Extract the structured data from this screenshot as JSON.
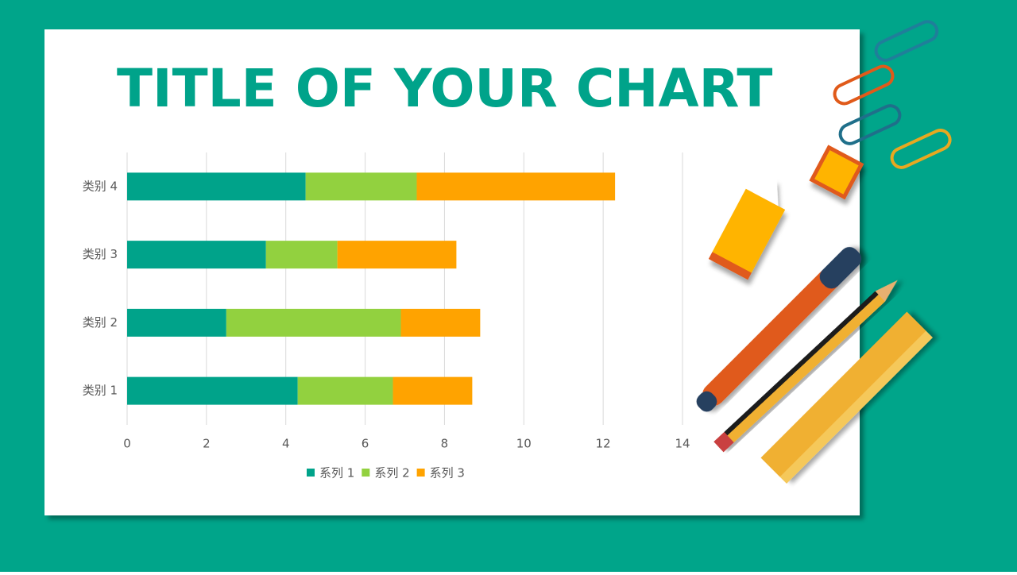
{
  "chart_data": {
    "type": "bar",
    "horizontal": true,
    "stacked": true,
    "grid": true,
    "title": "TITLE OF YOUR CHART",
    "categories": [
      "类别 1",
      "类别 2",
      "类别 3",
      "类别 4"
    ],
    "series": [
      {
        "name": "系列 1",
        "color": "#00a38a",
        "values": [
          4.3,
          2.5,
          3.5,
          4.5
        ]
      },
      {
        "name": "系列 2",
        "color": "#92d13f",
        "values": [
          2.4,
          4.4,
          1.8,
          2.8
        ]
      },
      {
        "name": "系列 3",
        "color": "#ffa300",
        "values": [
          2.0,
          2.0,
          3.0,
          5.0
        ]
      }
    ],
    "xlim": [
      0,
      14
    ],
    "xticks": [
      0,
      2,
      4,
      6,
      8,
      10,
      12,
      14
    ],
    "legend": "bottom"
  }
}
